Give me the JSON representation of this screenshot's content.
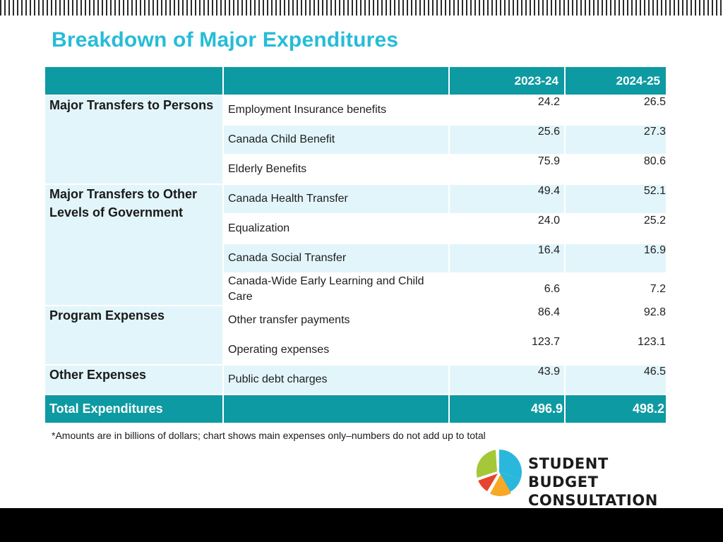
{
  "title": "Breakdown of Major Expenditures",
  "table": {
    "header": {
      "col1": "",
      "col2": "",
      "year1": "2023-24",
      "year2": "2024-25"
    },
    "groups": [
      {
        "category": "Major Transfers to Persons",
        "rows": [
          {
            "item": "Employment Insurance benefits",
            "v1": "24.2",
            "v2": "26.5"
          },
          {
            "item": "Canada Child Benefit",
            "v1": "25.6",
            "v2": "27.3"
          },
          {
            "item": "Elderly Benefits",
            "v1": "75.9",
            "v2": "80.6"
          }
        ]
      },
      {
        "category": "Major Transfers to Other Levels of Government",
        "rows": [
          {
            "item": "Canada Health Transfer",
            "v1": "49.4",
            "v2": "52.1"
          },
          {
            "item": "Equalization",
            "v1": "24.0",
            "v2": "25.2"
          },
          {
            "item": "Canada Social Transfer",
            "v1": "16.4",
            "v2": "16.9"
          },
          {
            "item": "Canada-Wide Early Learning and Child Care",
            "v1": "6.6",
            "v2": "7.2"
          }
        ]
      },
      {
        "category": "Program Expenses",
        "rows": [
          {
            "item": "Other transfer payments",
            "v1": "86.4",
            "v2": "92.8"
          },
          {
            "item": "Operating expenses",
            "v1": "123.7",
            "v2": "123.1"
          }
        ]
      },
      {
        "category": "Other Expenses",
        "rows": [
          {
            "item": "Public debt charges",
            "v1": "43.9",
            "v2": "46.5"
          }
        ]
      }
    ],
    "total": {
      "label": "Total Expenditures",
      "v1": "496.9",
      "v2": "498.2"
    }
  },
  "note": "*Amounts are in billions of dollars; chart shows main expenses only–numbers do not add up to total",
  "logo": {
    "line1": "STUDENT",
    "line2": "BUDGET CONSULTATION",
    "icon": "pie-chart-icon",
    "colors": {
      "green": "#a5c83a",
      "blue": "#29b8dc",
      "orange": "#f7a825",
      "red": "#e8432e"
    }
  },
  "colors": {
    "accent": "#26bcd7",
    "header": "#0e9aa2",
    "shade": "#e2f5fa"
  }
}
